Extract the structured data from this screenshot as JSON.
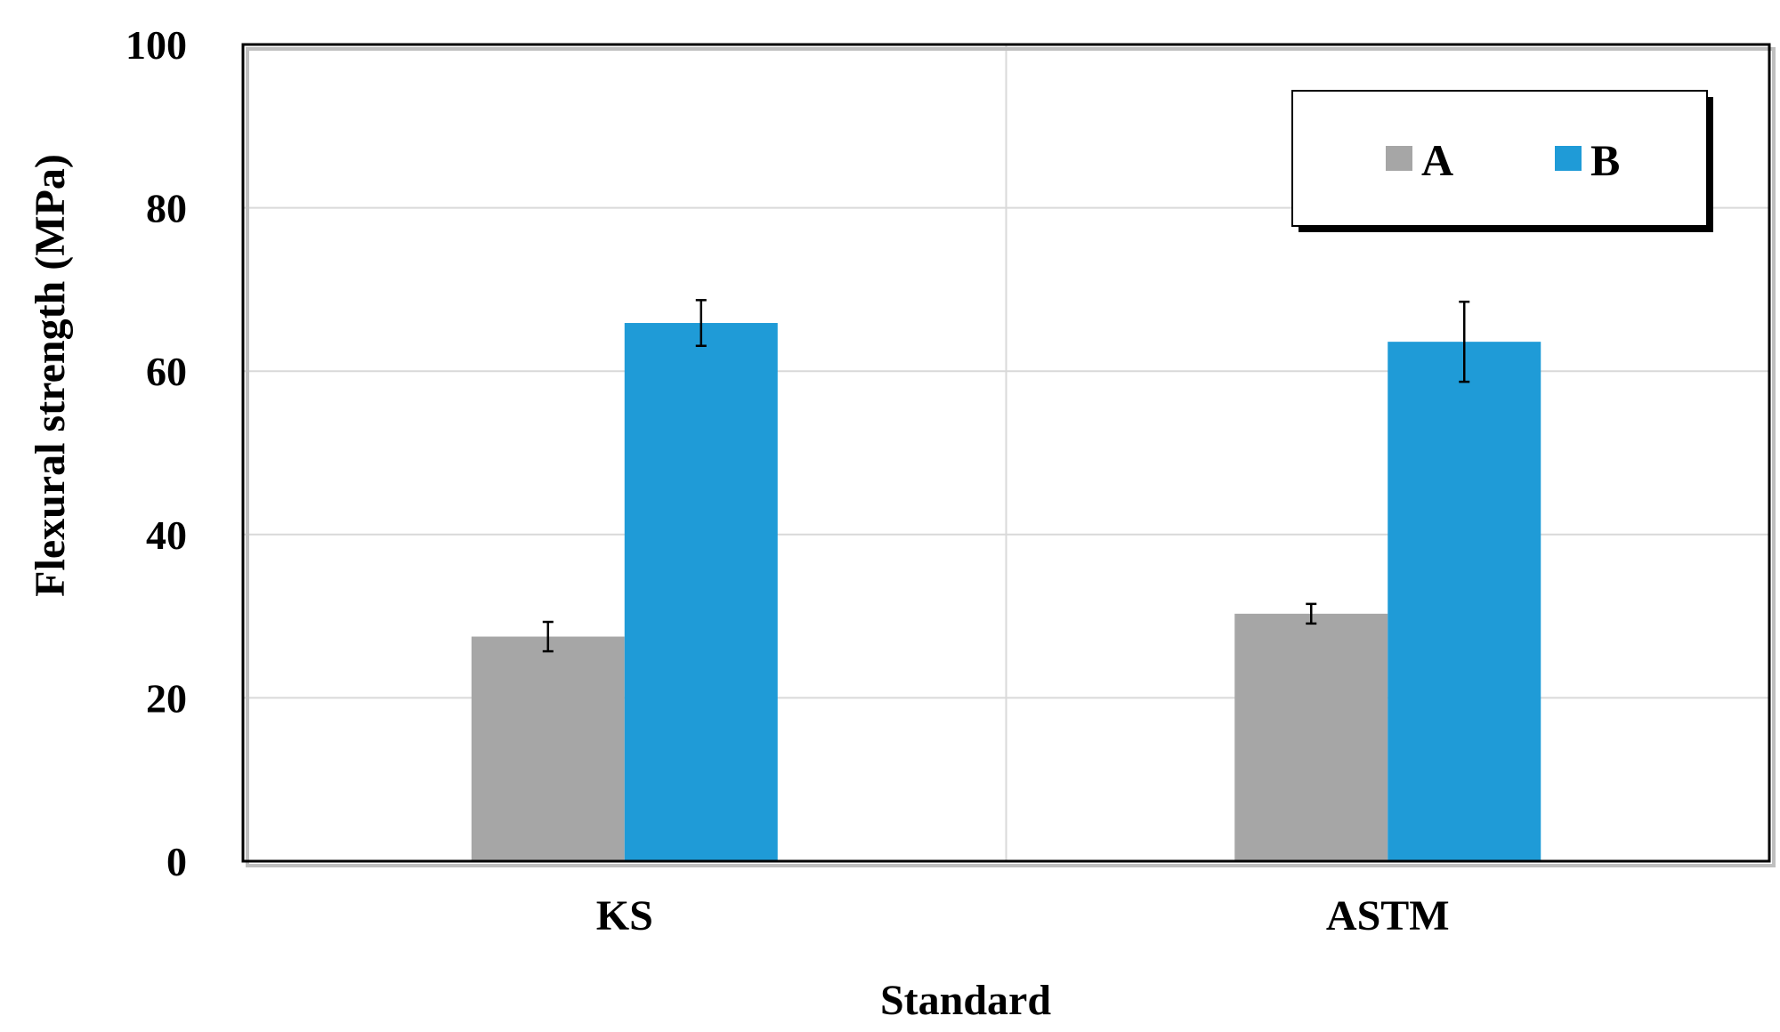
{
  "chart_data": {
    "type": "bar",
    "categories": [
      "KS",
      "ASTM"
    ],
    "series": [
      {
        "name": "A",
        "values": [
          27.5,
          30.3
        ],
        "errors": [
          1.8,
          1.2
        ],
        "color": "#a6a6a6"
      },
      {
        "name": "B",
        "values": [
          65.9,
          63.6
        ],
        "errors": [
          2.8,
          4.9
        ],
        "color": "#1f9bd7"
      }
    ],
    "title": "",
    "xlabel": "Standard",
    "ylabel": "Flexural strength (MPa)",
    "ylim": [
      0,
      100
    ],
    "yticks": [
      "0",
      "20",
      "40",
      "60",
      "80",
      "100"
    ],
    "grid": true,
    "legend": "top-right"
  }
}
